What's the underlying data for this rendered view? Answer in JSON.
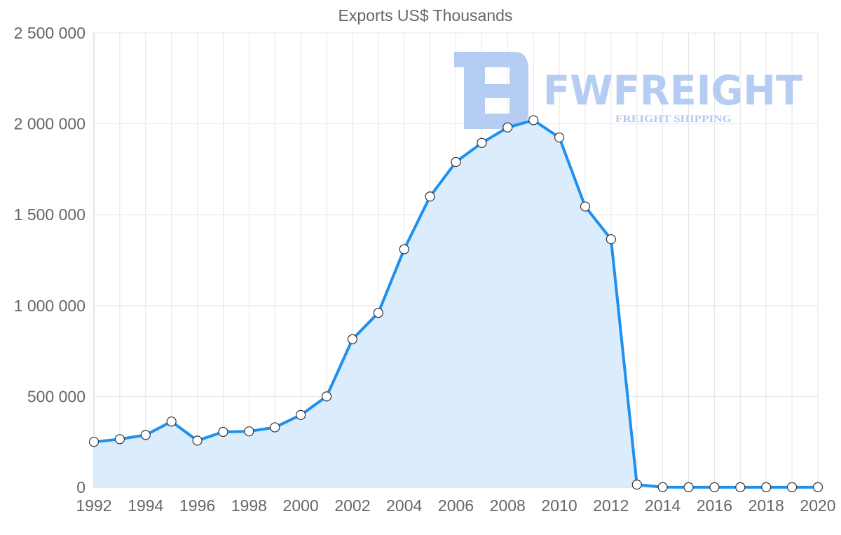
{
  "chart_data": {
    "type": "area",
    "title": "Exports US$ Thousands",
    "xlabel": "",
    "ylabel": "",
    "x": [
      1992,
      1993,
      1994,
      1995,
      1996,
      1997,
      1998,
      1999,
      2000,
      2001,
      2002,
      2003,
      2004,
      2005,
      2006,
      2007,
      2008,
      2009,
      2010,
      2011,
      2012,
      2013,
      2014,
      2015,
      2016,
      2017,
      2018,
      2019,
      2020
    ],
    "series": [
      {
        "name": "Exports US$ Thousands",
        "values": [
          250000,
          265000,
          288000,
          362000,
          257000,
          305000,
          308000,
          330000,
          398000,
          500000,
          815000,
          960000,
          1310000,
          1600000,
          1790000,
          1895000,
          1980000,
          2020000,
          1925000,
          1545000,
          1365000,
          15000,
          1000,
          500,
          500,
          500,
          500,
          500,
          500
        ]
      }
    ],
    "xlim": [
      1992,
      2020
    ],
    "ylim": [
      0,
      2500000
    ],
    "x_ticks": [
      1992,
      1994,
      1996,
      1998,
      2000,
      2002,
      2004,
      2006,
      2008,
      2010,
      2012,
      2014,
      2016,
      2018,
      2020
    ],
    "y_ticks": [
      0,
      500000,
      1000000,
      1500000,
      2000000,
      2500000
    ],
    "y_tick_labels": [
      "0",
      "500 000",
      "1 000 000",
      "1 500 000",
      "2 000 000",
      "2 500 000"
    ],
    "grid": true,
    "colors": {
      "line": "#1e90ee",
      "fill": "#d9ebfc",
      "point_fill": "#ffffff",
      "point_stroke": "#333333"
    }
  },
  "watermark": {
    "brand": "FWFREIGHT",
    "tagline": "FREIGHT SHIPPING",
    "color": "#a9c5f2"
  }
}
